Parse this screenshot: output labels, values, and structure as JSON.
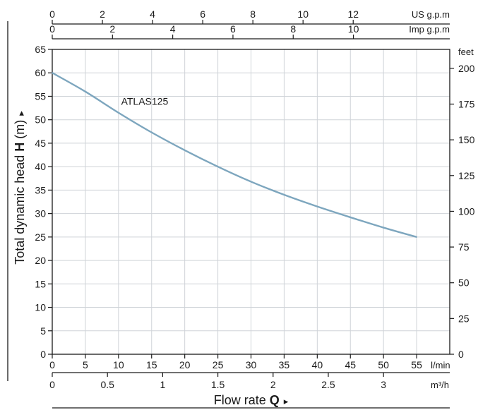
{
  "chart_data": {
    "type": "line",
    "series": [
      {
        "name": "ATLAS125",
        "x": [
          0,
          5,
          10,
          15,
          20,
          25,
          30,
          35,
          40,
          45,
          50,
          55
        ],
        "y": [
          60,
          56,
          51.5,
          47.3,
          43.5,
          40,
          36.8,
          34,
          31.5,
          29.2,
          27,
          25
        ]
      }
    ],
    "xlabel": "Flow rate",
    "xlabel_bold": "Q",
    "ylabel": "Total dynamic head",
    "ylabel_bold": "H",
    "ylabel_unit": "(m)",
    "xlim": [
      0,
      60
    ],
    "ylim": [
      0,
      65
    ],
    "grid": true,
    "axes": {
      "bottom_primary": {
        "unit": "l/min",
        "ticks": [
          0,
          5,
          10,
          15,
          20,
          25,
          30,
          35,
          40,
          45,
          50,
          55
        ]
      },
      "bottom_secondary": {
        "unit": "m³/h",
        "ticks": [
          "0",
          "0.5",
          "1",
          "1.5",
          "2",
          "2.5",
          "3"
        ]
      },
      "top_outer": {
        "unit": "US g.p.m",
        "ticks": [
          0,
          2,
          4,
          6,
          8,
          10,
          12
        ]
      },
      "top_inner": {
        "unit": "Imp g.p.m",
        "ticks": [
          0,
          2,
          4,
          6,
          8,
          10
        ]
      },
      "left": {
        "unit": "m",
        "ticks": [
          0,
          5,
          10,
          15,
          20,
          25,
          30,
          35,
          40,
          45,
          50,
          55,
          60,
          65
        ]
      },
      "right": {
        "unit": "feet",
        "ticks": [
          0,
          25,
          50,
          75,
          100,
          125,
          150,
          175,
          200
        ]
      }
    },
    "colors": {
      "curve": "#7da6be",
      "grid": "#cfd3d8",
      "axis": "#1a1a1a"
    }
  }
}
